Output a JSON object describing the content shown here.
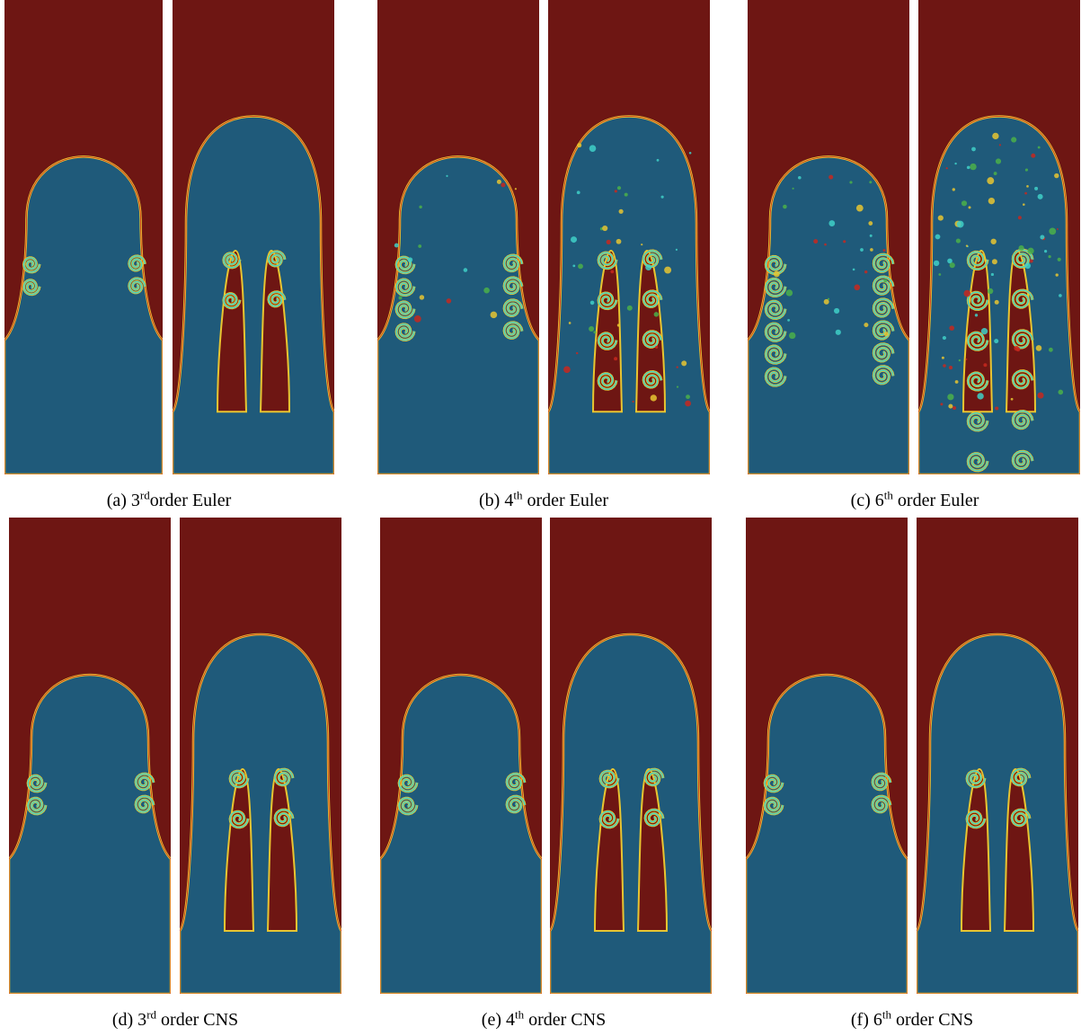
{
  "figures": [
    {
      "id": "a",
      "prefix": "(a) 3",
      "sup": "rd",
      "suffix": "order Euler",
      "style": "euler",
      "level": 0
    },
    {
      "id": "b",
      "prefix": "(b) 4",
      "sup": "th",
      "suffix": " order Euler",
      "style": "euler",
      "level": 1
    },
    {
      "id": "c",
      "prefix": "(c) 6",
      "sup": "th",
      "suffix": " order Euler",
      "style": "euler",
      "level": 2
    },
    {
      "id": "d",
      "prefix": "(d) 3",
      "sup": "rd",
      "suffix": "  order CNS",
      "style": "cns",
      "level": 0
    },
    {
      "id": "e",
      "prefix": "(e) 4",
      "sup": "th",
      "suffix": " order CNS",
      "style": "cns",
      "level": 1
    },
    {
      "id": "f",
      "prefix": "(f) 6",
      "sup": "th",
      "suffix": " order CNS",
      "style": "cns",
      "level": 2
    }
  ],
  "colors": {
    "heavy_fluid": "#6e1613",
    "light_fluid": "#1f5a7a",
    "bubble_interior": "#1d4f73",
    "interface_yellow": "#e8c531",
    "interface_cyan": "#3fd0c8",
    "interface_green": "#4bb04a",
    "interface_red": "#c8281e"
  }
}
